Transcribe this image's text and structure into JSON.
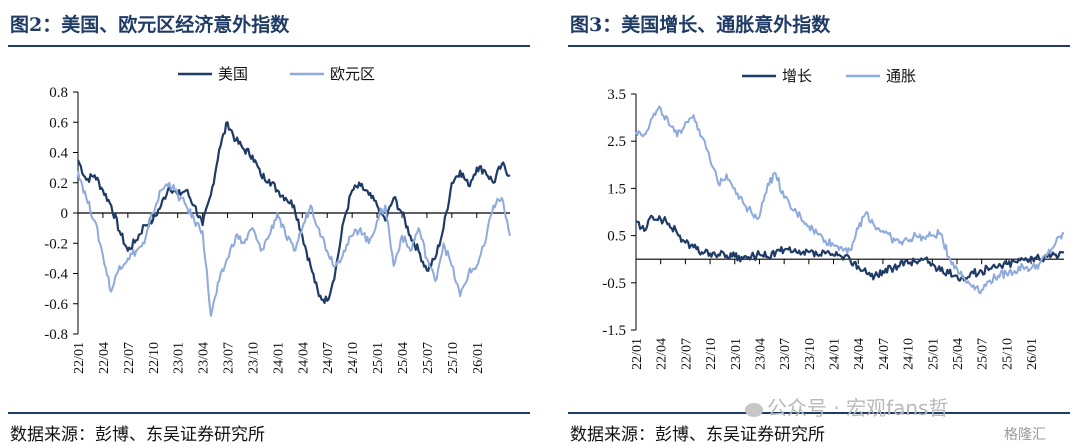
{
  "figures": [
    {
      "title": "图2：美国、欧元区经济意外指数",
      "source": "数据来源：彭博、东吴证券研究所"
    },
    {
      "title": "图3：美国增长、通胀意外指数",
      "source": "数据来源：彭博、东吴证券研究所"
    }
  ],
  "watermark": {
    "text": "公众号 · 宏观fans哲"
  },
  "corner_logo": {
    "text": "格隆汇"
  },
  "colors": {
    "dark": "#1f3b66",
    "light": "#8faadc",
    "rule": "#1f3b66"
  },
  "chart_data": [
    {
      "type": "line",
      "title": "",
      "xlabel": "",
      "ylabel": "",
      "ylim": [
        -0.8,
        0.8
      ],
      "yticks": [
        0.8,
        0.6,
        0.4,
        0.2,
        0,
        -0.2,
        -0.4,
        -0.6,
        -0.8
      ],
      "ytick_labels": [
        "0.8",
        "0.6",
        "0.4",
        "0.2",
        "0",
        "-0.2",
        "-0.4",
        "-0.6",
        "-0.8"
      ],
      "x_range": [
        "2022-01",
        "2026-05"
      ],
      "x_ticks": [
        "22/01",
        "22/04",
        "22/07",
        "22/10",
        "23/01",
        "23/04",
        "23/07",
        "23/10",
        "24/01",
        "24/04",
        "24/07",
        "24/10",
        "25/01",
        "25/04",
        "25/07",
        "25/10",
        "26/01"
      ],
      "legend_position": "top-center",
      "grid": false,
      "series": [
        {
          "name": "美国",
          "color": "#1f3b66",
          "points": [
            [
              "2022-01",
              0.35
            ],
            [
              "2022-02",
              0.22
            ],
            [
              "2022-03",
              0.25
            ],
            [
              "2022-04",
              0.15
            ],
            [
              "2022-05",
              0.05
            ],
            [
              "2022-06",
              -0.12
            ],
            [
              "2022-07",
              -0.25
            ],
            [
              "2022-08",
              -0.18
            ],
            [
              "2022-09",
              -0.08
            ],
            [
              "2022-10",
              -0.05
            ],
            [
              "2022-11",
              0.05
            ],
            [
              "2022-12",
              0.18
            ],
            [
              "2023-01",
              0.12
            ],
            [
              "2023-02",
              0.15
            ],
            [
              "2023-03",
              0.05
            ],
            [
              "2023-04",
              -0.08
            ],
            [
              "2023-05",
              0.12
            ],
            [
              "2023-06",
              0.42
            ],
            [
              "2023-07",
              0.6
            ],
            [
              "2023-08",
              0.48
            ],
            [
              "2023-09",
              0.42
            ],
            [
              "2023-10",
              0.38
            ],
            [
              "2023-11",
              0.25
            ],
            [
              "2023-12",
              0.22
            ],
            [
              "2024-01",
              0.15
            ],
            [
              "2024-02",
              0.1
            ],
            [
              "2024-03",
              0.05
            ],
            [
              "2024-04",
              -0.15
            ],
            [
              "2024-05",
              -0.35
            ],
            [
              "2024-06",
              -0.55
            ],
            [
              "2024-07",
              -0.58
            ],
            [
              "2024-08",
              -0.38
            ],
            [
              "2024-09",
              -0.05
            ],
            [
              "2024-10",
              0.15
            ],
            [
              "2024-11",
              0.18
            ],
            [
              "2024-12",
              0.12
            ],
            [
              "2025-01",
              0.05
            ],
            [
              "2025-02",
              -0.05
            ],
            [
              "2025-03",
              0.1
            ],
            [
              "2025-04",
              0.0
            ],
            [
              "2025-05",
              -0.15
            ],
            [
              "2025-06",
              -0.25
            ],
            [
              "2025-07",
              -0.38
            ],
            [
              "2025-08",
              -0.3
            ],
            [
              "2025-09",
              -0.1
            ],
            [
              "2025-10",
              0.2
            ],
            [
              "2025-11",
              0.28
            ],
            [
              "2025-12",
              0.18
            ],
            [
              "2026-01",
              0.3
            ],
            [
              "2026-02",
              0.28
            ],
            [
              "2026-03",
              0.2
            ],
            [
              "2026-04",
              0.32
            ],
            [
              "2026-05",
              0.25
            ]
          ]
        },
        {
          "name": "欧元区",
          "color": "#8faadc",
          "points": [
            [
              "2022-01",
              0.28
            ],
            [
              "2022-02",
              0.1
            ],
            [
              "2022-03",
              -0.05
            ],
            [
              "2022-04",
              -0.28
            ],
            [
              "2022-05",
              -0.52
            ],
            [
              "2022-06",
              -0.35
            ],
            [
              "2022-07",
              -0.3
            ],
            [
              "2022-08",
              -0.25
            ],
            [
              "2022-09",
              -0.2
            ],
            [
              "2022-10",
              0.0
            ],
            [
              "2022-11",
              0.15
            ],
            [
              "2022-12",
              0.2
            ],
            [
              "2023-01",
              0.12
            ],
            [
              "2023-02",
              0.05
            ],
            [
              "2023-03",
              -0.05
            ],
            [
              "2023-04",
              -0.12
            ],
            [
              "2023-05",
              -0.68
            ],
            [
              "2023-06",
              -0.45
            ],
            [
              "2023-07",
              -0.3
            ],
            [
              "2023-08",
              -0.15
            ],
            [
              "2023-09",
              -0.2
            ],
            [
              "2023-10",
              -0.1
            ],
            [
              "2023-11",
              -0.25
            ],
            [
              "2023-12",
              -0.15
            ],
            [
              "2024-01",
              0.0
            ],
            [
              "2024-02",
              -0.15
            ],
            [
              "2024-03",
              -0.25
            ],
            [
              "2024-04",
              -0.1
            ],
            [
              "2024-05",
              0.05
            ],
            [
              "2024-06",
              -0.1
            ],
            [
              "2024-07",
              -0.25
            ],
            [
              "2024-08",
              -0.35
            ],
            [
              "2024-09",
              -0.25
            ],
            [
              "2024-10",
              -0.15
            ],
            [
              "2024-11",
              -0.1
            ],
            [
              "2024-12",
              -0.2
            ],
            [
              "2025-01",
              -0.05
            ],
            [
              "2025-02",
              0.05
            ],
            [
              "2025-03",
              -0.35
            ],
            [
              "2025-04",
              -0.15
            ],
            [
              "2025-05",
              -0.25
            ],
            [
              "2025-06",
              -0.1
            ],
            [
              "2025-07",
              -0.3
            ],
            [
              "2025-08",
              -0.45
            ],
            [
              "2025-09",
              -0.2
            ],
            [
              "2025-10",
              -0.35
            ],
            [
              "2025-11",
              -0.55
            ],
            [
              "2025-12",
              -0.4
            ],
            [
              "2026-01",
              -0.35
            ],
            [
              "2026-02",
              -0.2
            ],
            [
              "2026-03",
              0.05
            ],
            [
              "2026-04",
              0.1
            ],
            [
              "2026-05",
              -0.15
            ]
          ]
        }
      ]
    },
    {
      "type": "line",
      "title": "",
      "xlabel": "",
      "ylabel": "",
      "ylim": [
        -1.5,
        3.5
      ],
      "yticks": [
        3.5,
        2.5,
        1.5,
        0.5,
        -0.5,
        -1.5
      ],
      "ytick_labels": [
        "3.5",
        "2.5",
        "1.5",
        "0.5",
        "-0.5",
        "-1.5"
      ],
      "x_range": [
        "2022-01",
        "2026-05"
      ],
      "x_ticks": [
        "22/01",
        "22/04",
        "22/07",
        "22/10",
        "23/01",
        "23/04",
        "23/07",
        "23/10",
        "24/01",
        "24/04",
        "24/07",
        "24/10",
        "25/01",
        "25/04",
        "25/07",
        "25/10",
        "26/01"
      ],
      "legend_position": "top-center",
      "grid": false,
      "series": [
        {
          "name": "增长",
          "color": "#1f3b66",
          "points": [
            [
              "2022-01",
              0.8
            ],
            [
              "2022-02",
              0.6
            ],
            [
              "2022-03",
              0.9
            ],
            [
              "2022-04",
              0.85
            ],
            [
              "2022-05",
              0.75
            ],
            [
              "2022-06",
              0.55
            ],
            [
              "2022-07",
              0.35
            ],
            [
              "2022-08",
              0.25
            ],
            [
              "2022-09",
              0.15
            ],
            [
              "2022-10",
              0.12
            ],
            [
              "2022-11",
              0.1
            ],
            [
              "2022-12",
              0.08
            ],
            [
              "2023-01",
              0.05
            ],
            [
              "2023-02",
              0.0
            ],
            [
              "2023-03",
              0.05
            ],
            [
              "2023-04",
              0.1
            ],
            [
              "2023-05",
              0.05
            ],
            [
              "2023-06",
              0.15
            ],
            [
              "2023-07",
              0.2
            ],
            [
              "2023-08",
              0.15
            ],
            [
              "2023-09",
              0.1
            ],
            [
              "2023-10",
              0.15
            ],
            [
              "2023-11",
              0.1
            ],
            [
              "2023-12",
              0.12
            ],
            [
              "2024-01",
              0.08
            ],
            [
              "2024-02",
              0.05
            ],
            [
              "2024-03",
              0.0
            ],
            [
              "2024-04",
              -0.15
            ],
            [
              "2024-05",
              -0.3
            ],
            [
              "2024-06",
              -0.35
            ],
            [
              "2024-07",
              -0.25
            ],
            [
              "2024-08",
              -0.2
            ],
            [
              "2024-09",
              -0.15
            ],
            [
              "2024-10",
              -0.05
            ],
            [
              "2024-11",
              -0.05
            ],
            [
              "2024-12",
              0.0
            ],
            [
              "2025-01",
              -0.1
            ],
            [
              "2025-02",
              -0.25
            ],
            [
              "2025-03",
              -0.3
            ],
            [
              "2025-04",
              -0.35
            ],
            [
              "2025-05",
              -0.4
            ],
            [
              "2025-06",
              -0.3
            ],
            [
              "2025-07",
              -0.25
            ],
            [
              "2025-08",
              -0.2
            ],
            [
              "2025-09",
              -0.15
            ],
            [
              "2025-10",
              -0.1
            ],
            [
              "2025-11",
              -0.05
            ],
            [
              "2025-12",
              0.0
            ],
            [
              "2026-01",
              0.05
            ],
            [
              "2026-02",
              0.0
            ],
            [
              "2026-03",
              0.05
            ],
            [
              "2026-04",
              0.1
            ],
            [
              "2026-05",
              0.15
            ]
          ]
        },
        {
          "name": "通胀",
          "color": "#8faadc",
          "points": [
            [
              "2022-01",
              2.7
            ],
            [
              "2022-02",
              2.65
            ],
            [
              "2022-03",
              3.0
            ],
            [
              "2022-04",
              3.2
            ],
            [
              "2022-05",
              2.85
            ],
            [
              "2022-06",
              2.6
            ],
            [
              "2022-07",
              2.9
            ],
            [
              "2022-08",
              3.05
            ],
            [
              "2022-09",
              2.6
            ],
            [
              "2022-10",
              2.1
            ],
            [
              "2022-11",
              1.6
            ],
            [
              "2022-12",
              1.8
            ],
            [
              "2023-01",
              1.5
            ],
            [
              "2023-02",
              1.2
            ],
            [
              "2023-03",
              1.0
            ],
            [
              "2023-04",
              0.9
            ],
            [
              "2023-05",
              1.6
            ],
            [
              "2023-06",
              1.8
            ],
            [
              "2023-07",
              1.3
            ],
            [
              "2023-08",
              1.05
            ],
            [
              "2023-09",
              0.9
            ],
            [
              "2023-10",
              0.7
            ],
            [
              "2023-11",
              0.55
            ],
            [
              "2023-12",
              0.4
            ],
            [
              "2024-01",
              0.3
            ],
            [
              "2024-02",
              0.25
            ],
            [
              "2024-03",
              0.2
            ],
            [
              "2024-04",
              0.65
            ],
            [
              "2024-05",
              1.0
            ],
            [
              "2024-06",
              0.7
            ],
            [
              "2024-07",
              0.6
            ],
            [
              "2024-08",
              0.45
            ],
            [
              "2024-09",
              0.35
            ],
            [
              "2024-10",
              0.4
            ],
            [
              "2024-11",
              0.5
            ],
            [
              "2024-12",
              0.45
            ],
            [
              "2025-01",
              0.5
            ],
            [
              "2025-02",
              0.55
            ],
            [
              "2025-03",
              0.05
            ],
            [
              "2025-04",
              -0.2
            ],
            [
              "2025-05",
              -0.45
            ],
            [
              "2025-06",
              -0.55
            ],
            [
              "2025-07",
              -0.65
            ],
            [
              "2025-08",
              -0.45
            ],
            [
              "2025-09",
              -0.35
            ],
            [
              "2025-10",
              -0.3
            ],
            [
              "2025-11",
              -0.25
            ],
            [
              "2025-12",
              -0.15
            ],
            [
              "2026-01",
              -0.2
            ],
            [
              "2026-02",
              -0.1
            ],
            [
              "2026-03",
              0.1
            ],
            [
              "2026-04",
              0.35
            ],
            [
              "2026-05",
              0.55
            ]
          ]
        }
      ]
    }
  ]
}
